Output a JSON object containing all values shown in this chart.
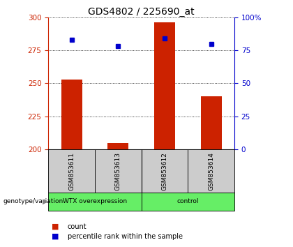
{
  "title": "GDS4802 / 225690_at",
  "samples": [
    "GSM853611",
    "GSM853613",
    "GSM853612",
    "GSM853614"
  ],
  "bar_values": [
    253,
    205,
    296,
    240
  ],
  "percentile_values": [
    83,
    78,
    84,
    80
  ],
  "bar_color": "#cc2200",
  "percentile_color": "#0000cc",
  "ylim_left": [
    200,
    300
  ],
  "ylim_right": [
    0,
    100
  ],
  "yticks_left": [
    200,
    225,
    250,
    275,
    300
  ],
  "yticks_right": [
    0,
    25,
    50,
    75,
    100
  ],
  "groups": [
    {
      "label": "WTX overexpression",
      "color": "#66ee66"
    },
    {
      "label": "control",
      "color": "#66ee66"
    }
  ],
  "group_label_prefix": "genotype/variation",
  "legend_count_label": "count",
  "legend_percentile_label": "percentile rank within the sample",
  "title_fontsize": 10,
  "tick_fontsize": 7.5,
  "sample_fontsize": 6.5,
  "bar_width": 0.45,
  "sample_box_color": "#cccccc",
  "left_axis_color": "#cc2200",
  "right_axis_color": "#0000cc"
}
